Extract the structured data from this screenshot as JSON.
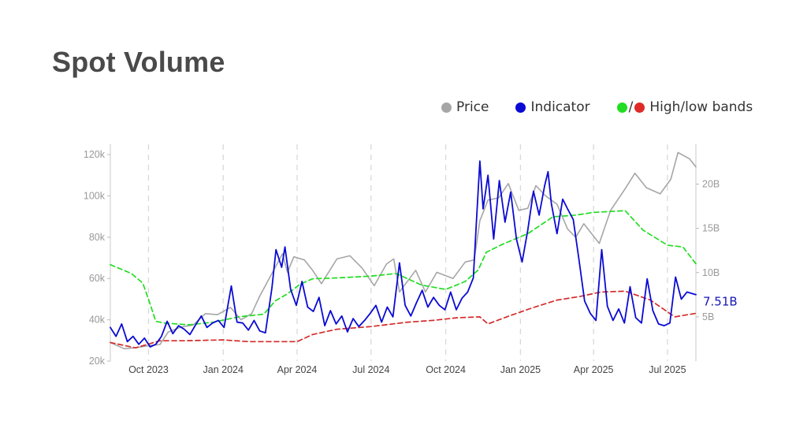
{
  "page": {
    "title": "Spot Volume"
  },
  "legend": {
    "price_label": "Price",
    "indicator_label": "Indicator",
    "bands_label": "High/low bands"
  },
  "colors": {
    "price": "#a6a6a6",
    "indicator": "#0a0ad4",
    "high_band": "#22dd22",
    "low_band": "#d42a2a",
    "grid": "#d9d9d9",
    "axis_text": "#999999",
    "last_label": "#1515b8"
  },
  "chart_data": {
    "type": "line",
    "grid": "vertical dashed lines at x ticks",
    "legend_position": "top-right",
    "x_range": [
      "2023-08-15",
      "2025-08-05"
    ],
    "x_ticks": [
      {
        "date": "2023-10-01",
        "label": "Oct 2023"
      },
      {
        "date": "2024-01-01",
        "label": "Jan 2024"
      },
      {
        "date": "2024-04-01",
        "label": "Apr 2024"
      },
      {
        "date": "2024-07-01",
        "label": "Jul 2024"
      },
      {
        "date": "2024-10-01",
        "label": "Oct 2024"
      },
      {
        "date": "2025-01-01",
        "label": "Jan 2025"
      },
      {
        "date": "2025-04-01",
        "label": "Apr 2025"
      },
      {
        "date": "2025-07-01",
        "label": "Jul 2025"
      }
    ],
    "y_left": {
      "range": [
        20000,
        125000
      ],
      "ticks": [
        {
          "value": 20000,
          "label": "20k"
        },
        {
          "value": 40000,
          "label": "40k"
        },
        {
          "value": 60000,
          "label": "60k"
        },
        {
          "value": 80000,
          "label": "80k"
        },
        {
          "value": 100000,
          "label": "100k"
        },
        {
          "value": 120000,
          "label": "120k"
        }
      ]
    },
    "y_right": {
      "range": [
        0,
        24.5
      ],
      "unit": "B",
      "ticks": [
        {
          "value": 5,
          "label": "5B"
        },
        {
          "value": 10,
          "label": "10B"
        },
        {
          "value": 15,
          "label": "15B"
        },
        {
          "value": 20,
          "label": "20B"
        }
      ]
    },
    "last_value_label": "7.51B",
    "series": [
      {
        "name": "Price",
        "axis": "left",
        "points": [
          [
            "2023-08-15",
            29000
          ],
          [
            "2023-09-01",
            26000
          ],
          [
            "2023-09-15",
            26500
          ],
          [
            "2023-10-01",
            27500
          ],
          [
            "2023-10-15",
            28000
          ],
          [
            "2023-10-25",
            34000
          ],
          [
            "2023-11-10",
            36500
          ],
          [
            "2023-11-25",
            37500
          ],
          [
            "2023-12-10",
            43000
          ],
          [
            "2023-12-25",
            42500
          ],
          [
            "2024-01-10",
            46000
          ],
          [
            "2024-01-23",
            40000
          ],
          [
            "2024-02-05",
            43000
          ],
          [
            "2024-02-15",
            51500
          ],
          [
            "2024-02-28",
            61000
          ],
          [
            "2024-03-14",
            72000
          ],
          [
            "2024-03-20",
            63000
          ],
          [
            "2024-03-28",
            70500
          ],
          [
            "2024-04-10",
            69000
          ],
          [
            "2024-04-20",
            64000
          ],
          [
            "2024-05-01",
            57500
          ],
          [
            "2024-05-20",
            69500
          ],
          [
            "2024-06-05",
            71000
          ],
          [
            "2024-06-20",
            65000
          ],
          [
            "2024-07-05",
            56500
          ],
          [
            "2024-07-20",
            67000
          ],
          [
            "2024-07-29",
            69500
          ],
          [
            "2024-08-05",
            53500
          ],
          [
            "2024-08-25",
            64000
          ],
          [
            "2024-09-06",
            53500
          ],
          [
            "2024-09-20",
            63000
          ],
          [
            "2024-10-10",
            60000
          ],
          [
            "2024-10-25",
            68000
          ],
          [
            "2024-11-05",
            69000
          ],
          [
            "2024-11-12",
            88000
          ],
          [
            "2024-11-22",
            98000
          ],
          [
            "2024-12-05",
            99000
          ],
          [
            "2024-12-17",
            106000
          ],
          [
            "2024-12-30",
            93000
          ],
          [
            "2025-01-10",
            94000
          ],
          [
            "2025-01-20",
            105000
          ],
          [
            "2025-02-01",
            100000
          ],
          [
            "2025-02-15",
            96000
          ],
          [
            "2025-02-28",
            84000
          ],
          [
            "2025-03-10",
            80000
          ],
          [
            "2025-03-20",
            86500
          ],
          [
            "2025-04-08",
            77000
          ],
          [
            "2025-04-22",
            93000
          ],
          [
            "2025-05-10",
            103500
          ],
          [
            "2025-05-22",
            111000
          ],
          [
            "2025-06-05",
            104000
          ],
          [
            "2025-06-22",
            101000
          ],
          [
            "2025-07-05",
            108000
          ],
          [
            "2025-07-14",
            121000
          ],
          [
            "2025-07-28",
            118000
          ],
          [
            "2025-08-05",
            114000
          ]
        ]
      },
      {
        "name": "Indicator",
        "axis": "right",
        "points": [
          [
            "2023-08-15",
            3.8
          ],
          [
            "2023-08-22",
            2.8
          ],
          [
            "2023-08-29",
            4.2
          ],
          [
            "2023-09-05",
            2.2
          ],
          [
            "2023-09-12",
            2.8
          ],
          [
            "2023-09-19",
            1.9
          ],
          [
            "2023-09-26",
            2.6
          ],
          [
            "2023-10-03",
            1.6
          ],
          [
            "2023-10-10",
            1.9
          ],
          [
            "2023-10-17",
            2.8
          ],
          [
            "2023-10-24",
            4.5
          ],
          [
            "2023-10-31",
            3.1
          ],
          [
            "2023-11-07",
            4.0
          ],
          [
            "2023-11-14",
            3.6
          ],
          [
            "2023-11-21",
            3.0
          ],
          [
            "2023-11-28",
            4.1
          ],
          [
            "2023-12-05",
            5.1
          ],
          [
            "2023-12-12",
            3.8
          ],
          [
            "2023-12-19",
            4.3
          ],
          [
            "2023-12-26",
            4.6
          ],
          [
            "2024-01-02",
            3.8
          ],
          [
            "2024-01-11",
            8.5
          ],
          [
            "2024-01-18",
            4.4
          ],
          [
            "2024-01-25",
            4.3
          ],
          [
            "2024-02-01",
            3.5
          ],
          [
            "2024-02-08",
            4.6
          ],
          [
            "2024-02-15",
            3.4
          ],
          [
            "2024-02-22",
            3.2
          ],
          [
            "2024-03-01",
            8.3
          ],
          [
            "2024-03-06",
            12.6
          ],
          [
            "2024-03-13",
            10.6
          ],
          [
            "2024-03-17",
            12.9
          ],
          [
            "2024-03-24",
            8.1
          ],
          [
            "2024-03-31",
            6.3
          ],
          [
            "2024-04-07",
            9.0
          ],
          [
            "2024-04-14",
            6.1
          ],
          [
            "2024-04-21",
            5.6
          ],
          [
            "2024-04-28",
            7.2
          ],
          [
            "2024-05-05",
            4.0
          ],
          [
            "2024-05-12",
            5.7
          ],
          [
            "2024-05-19",
            4.2
          ],
          [
            "2024-05-26",
            5.1
          ],
          [
            "2024-06-02",
            3.3
          ],
          [
            "2024-06-09",
            4.8
          ],
          [
            "2024-06-16",
            3.9
          ],
          [
            "2024-06-23",
            4.6
          ],
          [
            "2024-06-30",
            5.4
          ],
          [
            "2024-07-07",
            6.3
          ],
          [
            "2024-07-14",
            4.4
          ],
          [
            "2024-07-21",
            6.1
          ],
          [
            "2024-07-28",
            5.0
          ],
          [
            "2024-08-05",
            11.1
          ],
          [
            "2024-08-12",
            6.3
          ],
          [
            "2024-08-19",
            5.1
          ],
          [
            "2024-08-26",
            6.6
          ],
          [
            "2024-09-02",
            8.0
          ],
          [
            "2024-09-09",
            6.1
          ],
          [
            "2024-09-16",
            7.2
          ],
          [
            "2024-09-23",
            6.3
          ],
          [
            "2024-09-30",
            5.8
          ],
          [
            "2024-10-07",
            7.8
          ],
          [
            "2024-10-14",
            5.8
          ],
          [
            "2024-10-21",
            7.1
          ],
          [
            "2024-10-28",
            7.8
          ],
          [
            "2024-11-04",
            9.4
          ],
          [
            "2024-11-08",
            16.2
          ],
          [
            "2024-11-12",
            22.6
          ],
          [
            "2024-11-16",
            17.2
          ],
          [
            "2024-11-22",
            21.0
          ],
          [
            "2024-11-29",
            13.8
          ],
          [
            "2024-12-06",
            20.4
          ],
          [
            "2024-12-13",
            15.7
          ],
          [
            "2024-12-20",
            19.1
          ],
          [
            "2024-12-27",
            13.8
          ],
          [
            "2025-01-03",
            11.2
          ],
          [
            "2025-01-10",
            14.8
          ],
          [
            "2025-01-17",
            19.2
          ],
          [
            "2025-01-24",
            16.5
          ],
          [
            "2025-01-31",
            19.9
          ],
          [
            "2025-02-04",
            21.4
          ],
          [
            "2025-02-08",
            17.8
          ],
          [
            "2025-02-15",
            14.4
          ],
          [
            "2025-02-22",
            18.3
          ],
          [
            "2025-02-28",
            17.2
          ],
          [
            "2025-03-07",
            16.0
          ],
          [
            "2025-03-14",
            11.5
          ],
          [
            "2025-03-21",
            6.8
          ],
          [
            "2025-03-28",
            5.4
          ],
          [
            "2025-04-04",
            4.6
          ],
          [
            "2025-04-11",
            12.6
          ],
          [
            "2025-04-18",
            6.2
          ],
          [
            "2025-04-25",
            4.6
          ],
          [
            "2025-05-02",
            5.9
          ],
          [
            "2025-05-09",
            4.3
          ],
          [
            "2025-05-16",
            8.4
          ],
          [
            "2025-05-23",
            4.9
          ],
          [
            "2025-05-30",
            4.3
          ],
          [
            "2025-06-06",
            9.3
          ],
          [
            "2025-06-13",
            5.7
          ],
          [
            "2025-06-20",
            4.2
          ],
          [
            "2025-06-27",
            4.0
          ],
          [
            "2025-07-04",
            4.3
          ],
          [
            "2025-07-11",
            9.5
          ],
          [
            "2025-07-18",
            7.0
          ],
          [
            "2025-07-25",
            7.8
          ],
          [
            "2025-08-05",
            7.51
          ]
        ]
      },
      {
        "name": "High band",
        "axis": "right",
        "points": [
          [
            "2023-08-15",
            10.9
          ],
          [
            "2023-09-10",
            9.9
          ],
          [
            "2023-09-24",
            8.8
          ],
          [
            "2023-10-01",
            7.0
          ],
          [
            "2023-10-10",
            4.5
          ],
          [
            "2023-10-20",
            4.3
          ],
          [
            "2023-11-20",
            4.1
          ],
          [
            "2023-12-20",
            4.4
          ],
          [
            "2024-01-20",
            5.0
          ],
          [
            "2024-02-20",
            5.3
          ],
          [
            "2024-03-05",
            6.8
          ],
          [
            "2024-03-20",
            7.6
          ],
          [
            "2024-04-05",
            8.7
          ],
          [
            "2024-04-20",
            9.3
          ],
          [
            "2024-05-20",
            9.4
          ],
          [
            "2024-07-01",
            9.6
          ],
          [
            "2024-08-01",
            9.9
          ],
          [
            "2024-09-01",
            8.6
          ],
          [
            "2024-10-01",
            8.1
          ],
          [
            "2024-10-25",
            9.0
          ],
          [
            "2024-11-10",
            10.3
          ],
          [
            "2024-11-20",
            12.3
          ],
          [
            "2024-12-10",
            13.2
          ],
          [
            "2025-01-10",
            14.4
          ],
          [
            "2025-02-10",
            16.3
          ],
          [
            "2025-03-10",
            16.5
          ],
          [
            "2025-04-01",
            16.8
          ],
          [
            "2025-05-10",
            17.0
          ],
          [
            "2025-06-01",
            14.8
          ],
          [
            "2025-07-01",
            13.1
          ],
          [
            "2025-07-20",
            12.9
          ],
          [
            "2025-08-05",
            11.0
          ]
        ]
      },
      {
        "name": "Low band",
        "axis": "right",
        "points": [
          [
            "2023-08-15",
            2.1
          ],
          [
            "2023-09-15",
            1.5
          ],
          [
            "2023-10-15",
            2.3
          ],
          [
            "2023-11-15",
            2.3
          ],
          [
            "2024-01-01",
            2.4
          ],
          [
            "2024-02-01",
            2.2
          ],
          [
            "2024-03-01",
            2.2
          ],
          [
            "2024-04-01",
            2.2
          ],
          [
            "2024-04-20",
            3.0
          ],
          [
            "2024-05-20",
            3.6
          ],
          [
            "2024-07-01",
            3.9
          ],
          [
            "2024-08-15",
            4.4
          ],
          [
            "2024-09-15",
            4.6
          ],
          [
            "2024-10-15",
            4.9
          ],
          [
            "2024-11-12",
            5.0
          ],
          [
            "2024-11-22",
            4.2
          ],
          [
            "2024-12-15",
            5.0
          ],
          [
            "2025-01-15",
            6.0
          ],
          [
            "2025-02-15",
            6.9
          ],
          [
            "2025-03-15",
            7.3
          ],
          [
            "2025-04-10",
            7.8
          ],
          [
            "2025-05-10",
            7.9
          ],
          [
            "2025-06-10",
            6.9
          ],
          [
            "2025-07-10",
            5.0
          ],
          [
            "2025-08-05",
            5.4
          ]
        ]
      }
    ]
  }
}
